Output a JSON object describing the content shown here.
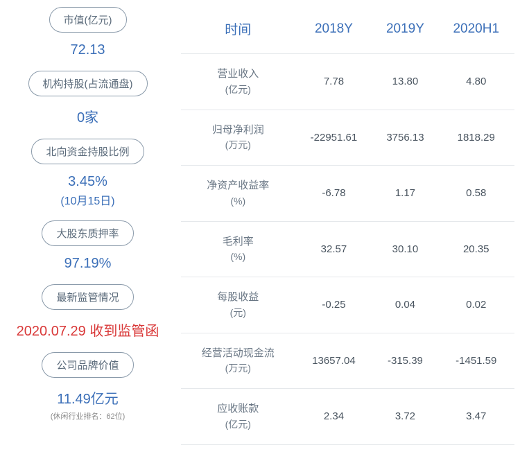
{
  "left": {
    "items": [
      {
        "label": "市值(亿元)",
        "value": "72.13",
        "value_color": "blue"
      },
      {
        "label": "机构持股(占流通盘)",
        "value": "0家",
        "value_color": "blue"
      },
      {
        "label": "北向资金持股比例",
        "value": "3.45%",
        "value_color": "blue",
        "sub": "(10月15日)"
      },
      {
        "label": "大股东质押率",
        "value": "97.19%",
        "value_color": "blue"
      },
      {
        "label": "最新监管情况",
        "value": "2020.07.29 收到监管函",
        "value_color": "red"
      },
      {
        "label": "公司品牌价值",
        "value": "11.49亿元",
        "value_color": "blue",
        "note": "(休闲行业排名：62位)"
      }
    ]
  },
  "table": {
    "headers": [
      "时间",
      "2018Y",
      "2019Y",
      "2020H1"
    ],
    "rows": [
      {
        "label": "营业收入",
        "unit": "(亿元)",
        "cells": [
          "7.78",
          "13.80",
          "4.80"
        ]
      },
      {
        "label": "归母净利润",
        "unit": "(万元)",
        "cells": [
          "-22951.61",
          "3756.13",
          "1818.29"
        ]
      },
      {
        "label": "净资产收益率",
        "unit": "(%)",
        "cells": [
          "-6.78",
          "1.17",
          "0.58"
        ]
      },
      {
        "label": "毛利率",
        "unit": "(%)",
        "cells": [
          "32.57",
          "30.10",
          "20.35"
        ]
      },
      {
        "label": "每股收益",
        "unit": "(元)",
        "cells": [
          "-0.25",
          "0.04",
          "0.02"
        ]
      },
      {
        "label": "经营活动现金流",
        "unit": "(万元)",
        "cells": [
          "13657.04",
          "-315.39",
          "-1451.59"
        ]
      },
      {
        "label": "应收账款",
        "unit": "(亿元)",
        "cells": [
          "2.34",
          "3.72",
          "3.47"
        ]
      }
    ]
  },
  "colors": {
    "header_text": "#3b6fb8",
    "value_blue": "#3b6fb8",
    "value_red": "#d93838",
    "pill_border": "#8a9aaa",
    "pill_text": "#5a6a7a",
    "cell_text": "#4a5560",
    "label_text": "#6a7785",
    "note_text": "#888888",
    "border": "#e5e8eb",
    "background": "#ffffff"
  }
}
